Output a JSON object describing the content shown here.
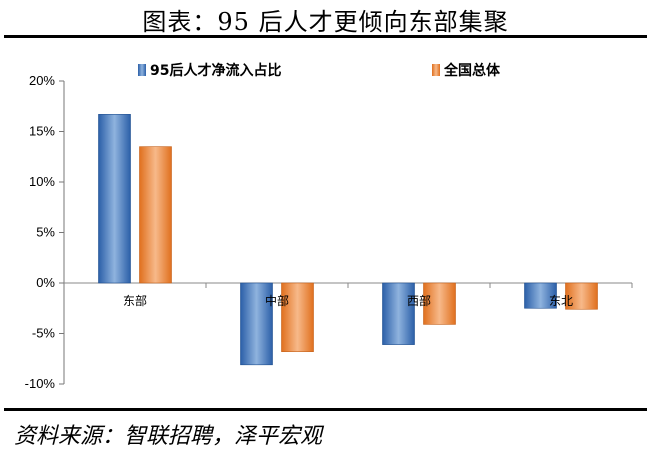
{
  "title": "图表：95 后人才更倾向东部集聚",
  "source": "资料来源：智联招聘，泽平宏观",
  "chart_data": {
    "type": "bar",
    "categories": [
      "东部",
      "中部",
      "西部",
      "东北"
    ],
    "series": [
      {
        "name": "95后人才净流入占比",
        "values": [
          16.7,
          -8.1,
          -6.1,
          -2.5
        ],
        "color": "#2e75b6"
      },
      {
        "name": "全国总体",
        "values": [
          13.5,
          -6.8,
          -4.1,
          -2.6
        ],
        "color": "#ed7d31"
      }
    ],
    "ylim": [
      -10,
      20
    ],
    "yticks": [
      -10,
      -5,
      0,
      5,
      10,
      15,
      20
    ],
    "ytick_labels": [
      "-10%",
      "-5%",
      "0%",
      "5%",
      "10%",
      "15%",
      "20%"
    ],
    "grid": false,
    "legend": "top"
  }
}
